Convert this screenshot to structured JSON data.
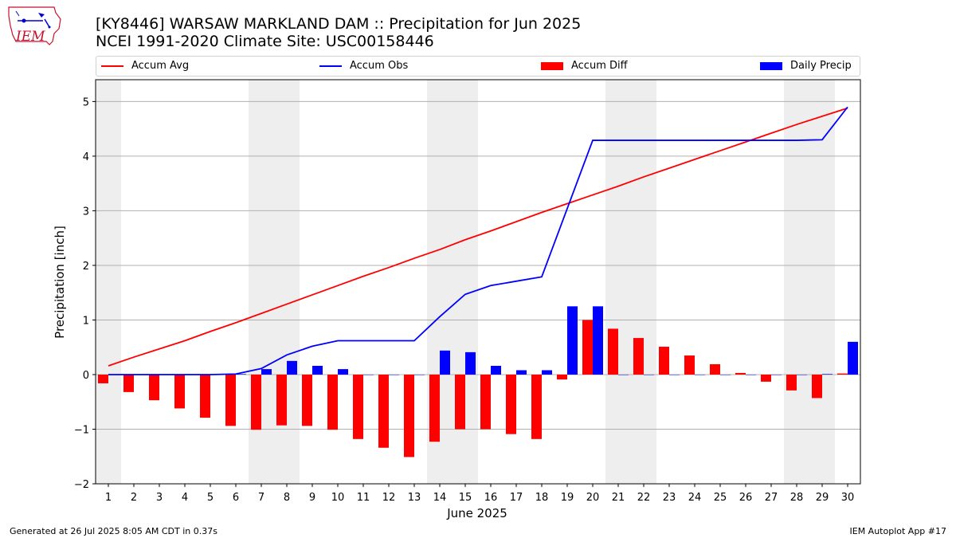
{
  "logo": {
    "text": "IEM",
    "icon": "iowa-state-outline-icon"
  },
  "header": {
    "title_line1": "[KY8446] WARSAW MARKLAND DAM :: Precipitation for Jun 2025",
    "title_line2": "NCEI 1991-2020 Climate Site: USC00158446"
  },
  "footer": {
    "generated": "Generated at 26 Jul 2025 8:05 AM CDT in 0.37s",
    "app": "IEM Autoplot App #17"
  },
  "colors": {
    "avg": "#ff0000",
    "obs": "#0000ff",
    "diff": "#ff0000",
    "daily": "#0000ff",
    "weekend_band": "#eeeeee",
    "grid": "#b0b0b0"
  },
  "chart_data": {
    "type": "bar",
    "xlabel": "June 2025",
    "ylabel": "Precipitation [inch]",
    "ylim": [
      -2,
      5.4
    ],
    "yticks": [
      -2,
      -1,
      0,
      1,
      2,
      3,
      4,
      5
    ],
    "ytick_labels": [
      "−2",
      "−1",
      "0",
      "1",
      "2",
      "3",
      "4",
      "5"
    ],
    "grid": "horizontal",
    "legend_position": "top",
    "days": [
      1,
      2,
      3,
      4,
      5,
      6,
      7,
      8,
      9,
      10,
      11,
      12,
      13,
      14,
      15,
      16,
      17,
      18,
      19,
      20,
      21,
      22,
      23,
      24,
      25,
      26,
      27,
      28,
      29,
      30
    ],
    "weekend_days": [
      1,
      7,
      8,
      14,
      15,
      21,
      22,
      28,
      29
    ],
    "series": [
      {
        "name": "Accum Avg",
        "kind": "line",
        "values": [
          0.16,
          0.32,
          0.47,
          0.62,
          0.79,
          0.95,
          1.12,
          1.29,
          1.46,
          1.63,
          1.8,
          1.96,
          2.13,
          2.29,
          2.47,
          2.63,
          2.8,
          2.97,
          3.13,
          3.29,
          3.45,
          3.62,
          3.78,
          3.94,
          4.1,
          4.26,
          4.42,
          4.58,
          4.73,
          4.88
        ]
      },
      {
        "name": "Accum Obs",
        "kind": "line",
        "values": [
          0.0,
          0.0,
          0.0,
          0.0,
          0.0,
          0.01,
          0.11,
          0.36,
          0.52,
          0.62,
          0.62,
          0.62,
          0.62,
          1.06,
          1.47,
          1.63,
          1.71,
          1.79,
          3.04,
          4.29,
          4.29,
          4.29,
          4.29,
          4.29,
          4.29,
          4.29,
          4.29,
          4.29,
          4.3,
          4.9
        ]
      },
      {
        "name": "Accum Diff",
        "kind": "bar",
        "values": [
          -0.16,
          -0.32,
          -0.47,
          -0.62,
          -0.79,
          -0.94,
          -1.01,
          -0.93,
          -0.94,
          -1.01,
          -1.18,
          -1.34,
          -1.51,
          -1.23,
          -1.0,
          -1.0,
          -1.09,
          -1.18,
          -0.09,
          1.0,
          0.84,
          0.67,
          0.51,
          0.35,
          0.19,
          0.03,
          -0.13,
          -0.29,
          -0.43,
          0.02
        ]
      },
      {
        "name": "Daily Precip",
        "kind": "bar",
        "values": [
          0.0,
          0.0,
          0.0,
          0.0,
          0.0,
          0.01,
          0.1,
          0.25,
          0.16,
          0.1,
          0.0,
          0.0,
          0.0,
          0.44,
          0.41,
          0.16,
          0.08,
          0.08,
          1.25,
          1.25,
          0.0,
          0.0,
          0.0,
          0.0,
          0.0,
          0.0,
          0.0,
          0.0,
          0.01,
          0.6
        ]
      }
    ]
  }
}
